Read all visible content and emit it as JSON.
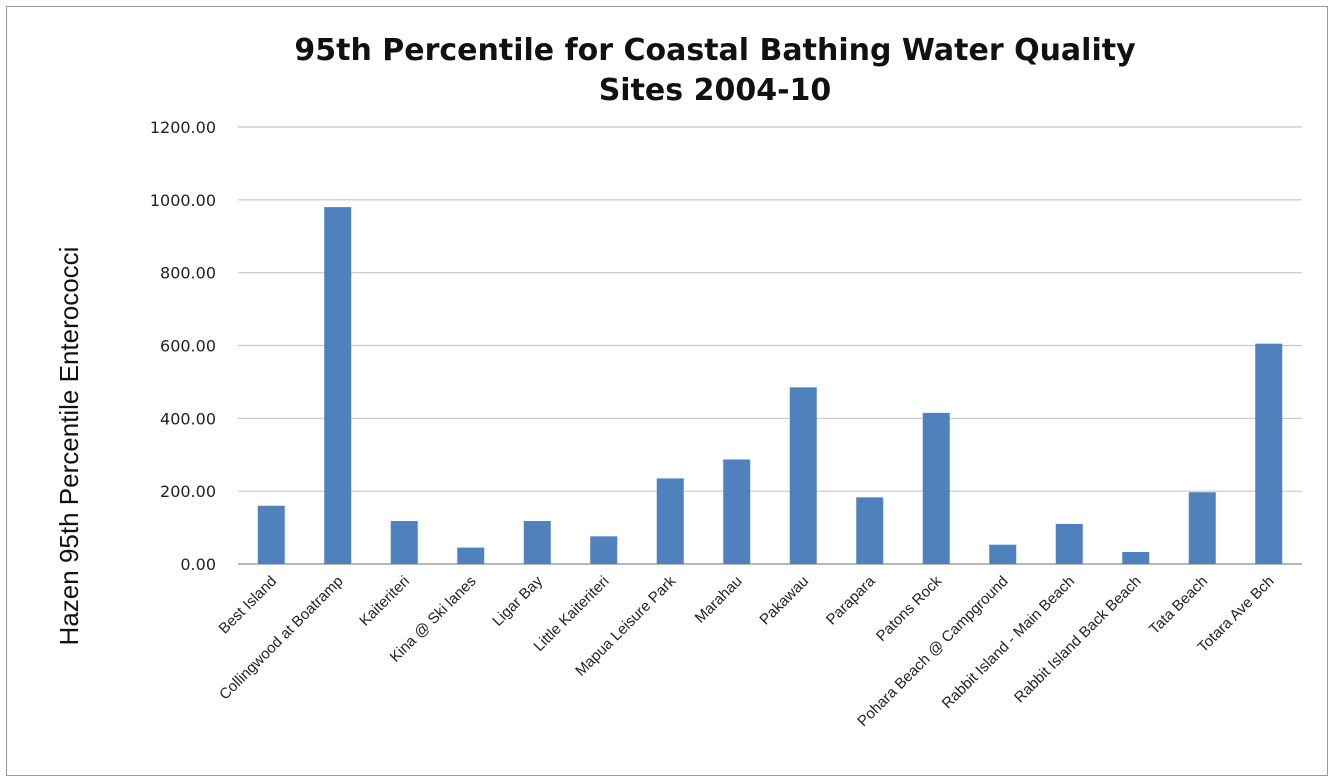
{
  "chart_data": {
    "type": "bar",
    "title_line1": "95th Percentile for Coastal Bathing Water Quality",
    "title_line2": "Sites 2004-10",
    "ylabel": "Hazen 95th Percentile Enterococci",
    "xlabel": "",
    "ylim": [
      0,
      1200
    ],
    "yticks": [
      "0.00",
      "200.00",
      "400.00",
      "600.00",
      "800.00",
      "1000.00",
      "1200.00"
    ],
    "ytick_values": [
      0,
      200,
      400,
      600,
      800,
      1000,
      1200
    ],
    "grid": true,
    "bar_color": "#4f81bd",
    "categories": [
      "Best Island",
      "Collingwood at Boatramp",
      "Kaiteriteri",
      "Kina @ Ski lanes",
      "Ligar Bay",
      "Little Kaiteriteri",
      "Mapua Leisure Park",
      "Marahau",
      "Pakawau",
      "Parapara",
      "Patons Rock",
      "Pohara Beach @ Campground",
      "Rabbit Island - Main Beach",
      "Rabbit Island Back Beach",
      "Tata Beach",
      "Totara Ave Bch"
    ],
    "values": [
      160,
      980,
      118,
      45,
      118,
      76,
      235,
      287,
      485,
      183,
      415,
      53,
      110,
      33,
      197,
      605
    ]
  }
}
